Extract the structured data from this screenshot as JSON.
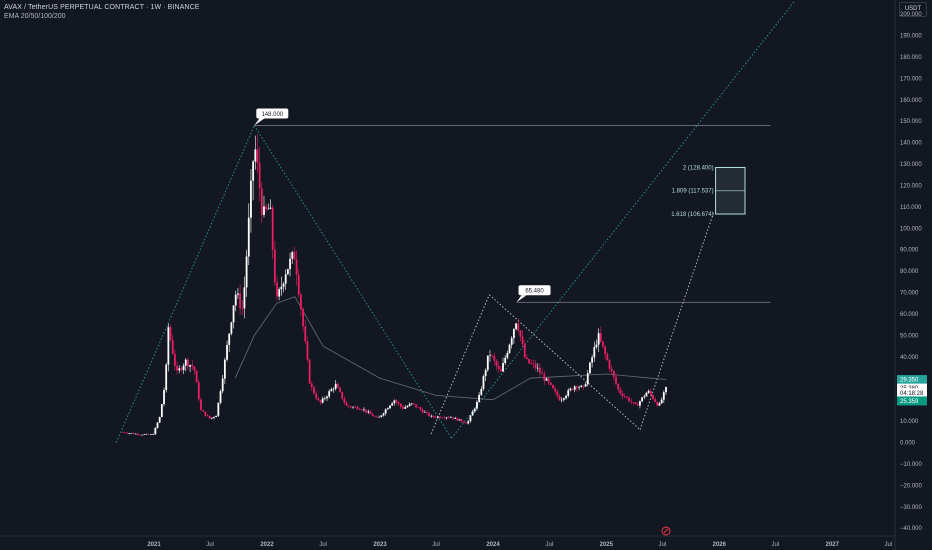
{
  "header": {
    "title": "AVAX / TetherUS PERPETUAL CONTRACT · 1W · BINANCE",
    "indicator": "EMA 20/50/100/200",
    "currency": "USDT"
  },
  "chart_data": {
    "type": "candlestick",
    "symbol": "AVAX / TetherUS PERPETUAL CONTRACT",
    "interval": "1W",
    "exchange": "BINANCE",
    "ylim": [
      -40,
      200
    ],
    "y_ticks": [
      200,
      190,
      180,
      170,
      160,
      150,
      140,
      130,
      120,
      110,
      100,
      90,
      80,
      70,
      60,
      50,
      40,
      30,
      20,
      10,
      0,
      -10,
      -20,
      -30,
      -40
    ],
    "y_tick_labels": [
      "200.000",
      "190.000",
      "180.000",
      "170.000",
      "160.000",
      "150.000",
      "140.000",
      "130.000",
      "120.000",
      "110.000",
      "100.000",
      "90.000",
      "80.000",
      "70.000",
      "60.000",
      "50.000",
      "40.000",
      "30.000",
      "20.000",
      "10.000",
      "0.000",
      "−10.000",
      "−20.000",
      "−30.000",
      "−40.000"
    ],
    "x_ticks": [
      {
        "label": "2021",
        "date": "2021-01-01"
      },
      {
        "label": "Jul",
        "date": "2021-07-01"
      },
      {
        "label": "2022",
        "date": "2022-01-01"
      },
      {
        "label": "Jul",
        "date": "2022-07-01"
      },
      {
        "label": "2023",
        "date": "2023-01-01"
      },
      {
        "label": "Jul",
        "date": "2023-07-01"
      },
      {
        "label": "2024",
        "date": "2024-01-01"
      },
      {
        "label": "Jul",
        "date": "2024-07-01"
      },
      {
        "label": "2025",
        "date": "2025-01-01"
      },
      {
        "label": "Jul",
        "date": "2025-07-01"
      },
      {
        "label": "2026",
        "date": "2026-01-01"
      },
      {
        "label": "Jul",
        "date": "2026-07-01"
      },
      {
        "label": "2027",
        "date": "2027-01-01"
      },
      {
        "label": "Jul",
        "date": "2027-07-01"
      }
    ],
    "price_path": [
      {
        "date": "2020-09-22",
        "price": 4.8
      },
      {
        "date": "2020-11-15",
        "price": 3.8
      },
      {
        "date": "2020-12-28",
        "price": 3.6
      },
      {
        "date": "2021-01-20",
        "price": 12
      },
      {
        "date": "2021-02-08",
        "price": 30
      },
      {
        "date": "2021-02-15",
        "price": 55
      },
      {
        "date": "2021-03-15",
        "price": 32
      },
      {
        "date": "2021-04-12",
        "price": 38
      },
      {
        "date": "2021-05-10",
        "price": 35
      },
      {
        "date": "2021-06-01",
        "price": 15
      },
      {
        "date": "2021-07-01",
        "price": 11
      },
      {
        "date": "2021-07-22",
        "price": 13
      },
      {
        "date": "2021-08-15",
        "price": 35
      },
      {
        "date": "2021-09-20",
        "price": 70
      },
      {
        "date": "2021-10-15",
        "price": 62
      },
      {
        "date": "2021-11-21",
        "price": 140
      },
      {
        "date": "2021-12-20",
        "price": 105
      },
      {
        "date": "2022-01-10",
        "price": 110
      },
      {
        "date": "2022-02-01",
        "price": 65
      },
      {
        "date": "2022-03-01",
        "price": 80
      },
      {
        "date": "2022-04-01",
        "price": 88
      },
      {
        "date": "2022-05-01",
        "price": 50
      },
      {
        "date": "2022-05-20",
        "price": 27
      },
      {
        "date": "2022-06-20",
        "price": 18
      },
      {
        "date": "2022-08-10",
        "price": 27
      },
      {
        "date": "2022-09-15",
        "price": 17
      },
      {
        "date": "2022-11-01",
        "price": 16
      },
      {
        "date": "2022-12-25",
        "price": 11
      },
      {
        "date": "2023-02-15",
        "price": 20
      },
      {
        "date": "2023-03-15",
        "price": 16
      },
      {
        "date": "2023-04-15",
        "price": 18
      },
      {
        "date": "2023-06-15",
        "price": 12
      },
      {
        "date": "2023-08-15",
        "price": 12
      },
      {
        "date": "2023-10-10",
        "price": 9
      },
      {
        "date": "2023-11-15",
        "price": 20
      },
      {
        "date": "2023-12-20",
        "price": 42
      },
      {
        "date": "2024-01-25",
        "price": 32
      },
      {
        "date": "2024-03-17",
        "price": 58
      },
      {
        "date": "2024-04-15",
        "price": 38
      },
      {
        "date": "2024-05-20",
        "price": 35
      },
      {
        "date": "2024-08-05",
        "price": 20
      },
      {
        "date": "2024-09-25",
        "price": 27
      },
      {
        "date": "2024-10-20",
        "price": 25
      },
      {
        "date": "2024-12-05",
        "price": 50
      },
      {
        "date": "2025-01-05",
        "price": 38
      },
      {
        "date": "2025-02-10",
        "price": 24
      },
      {
        "date": "2025-04-07",
        "price": 17
      },
      {
        "date": "2025-05-15",
        "price": 24
      },
      {
        "date": "2025-06-20",
        "price": 17
      },
      {
        "date": "2025-07-14",
        "price": 25.38
      }
    ],
    "ema_path": [
      {
        "date": "2021-09-20",
        "price": 30
      },
      {
        "date": "2021-11-21",
        "price": 50
      },
      {
        "date": "2022-02-01",
        "price": 65
      },
      {
        "date": "2022-04-01",
        "price": 68
      },
      {
        "date": "2022-07-01",
        "price": 45
      },
      {
        "date": "2023-01-01",
        "price": 30
      },
      {
        "date": "2023-07-01",
        "price": 22
      },
      {
        "date": "2024-01-01",
        "price": 20
      },
      {
        "date": "2024-05-01",
        "price": 30
      },
      {
        "date": "2025-01-01",
        "price": 32
      },
      {
        "date": "2025-07-14",
        "price": 29.35
      }
    ],
    "horizontal_levels": [
      {
        "label": "148.000",
        "price": 148,
        "from": "2021-11-21",
        "to": "2026-06-15"
      },
      {
        "label": "65.480",
        "price": 65.48,
        "from": "2024-03-17",
        "to": "2026-06-15"
      }
    ],
    "trendlines": [
      {
        "style": "dotted",
        "color": "#26a69a",
        "points": [
          {
            "date": "2020-09-01",
            "price": 0
          },
          {
            "date": "2021-11-21",
            "price": 148
          }
        ]
      },
      {
        "style": "dotted",
        "color": "#26a69a",
        "points": [
          {
            "date": "2021-11-21",
            "price": 148
          },
          {
            "date": "2023-08-20",
            "price": 2
          }
        ]
      },
      {
        "style": "dotted",
        "color": "#26a69a",
        "points": [
          {
            "date": "2023-08-20",
            "price": 2
          },
          {
            "date": "2026-09-01",
            "price": 206
          }
        ]
      },
      {
        "style": "dotted",
        "color": "#d1d4dc",
        "points": [
          {
            "date": "2023-06-15",
            "price": 4
          },
          {
            "date": "2023-12-20",
            "price": 69
          }
        ]
      },
      {
        "style": "dotted",
        "color": "#d1d4dc",
        "points": [
          {
            "date": "2023-12-20",
            "price": 69
          },
          {
            "date": "2025-04-20",
            "price": 6
          }
        ]
      },
      {
        "style": "dotted",
        "color": "#d1d4dc",
        "points": [
          {
            "date": "2025-04-20",
            "price": 6
          },
          {
            "date": "2025-12-15",
            "price": 108
          }
        ]
      }
    ],
    "fib_box": {
      "from": "2025-12-20",
      "to": "2026-03-25",
      "levels": [
        {
          "label": "2 (128.400)",
          "price": 128.4
        },
        {
          "label": "1.809 (117.537)",
          "price": 117.537
        },
        {
          "label": "1.618 (106.674)",
          "price": 106.674
        }
      ]
    },
    "price_labels": [
      {
        "label": "29.350",
        "price": 29.35,
        "color": "#26a69a"
      },
      {
        "label": "25.380",
        "price": 25.38,
        "color": "#ffffff"
      },
      {
        "label": "04:18:28",
        "price": 23.2,
        "color": "#ffffff"
      },
      {
        "label": "25.359",
        "price": 19.4,
        "color": "#089981"
      }
    ],
    "grid": false,
    "legend": "none"
  }
}
